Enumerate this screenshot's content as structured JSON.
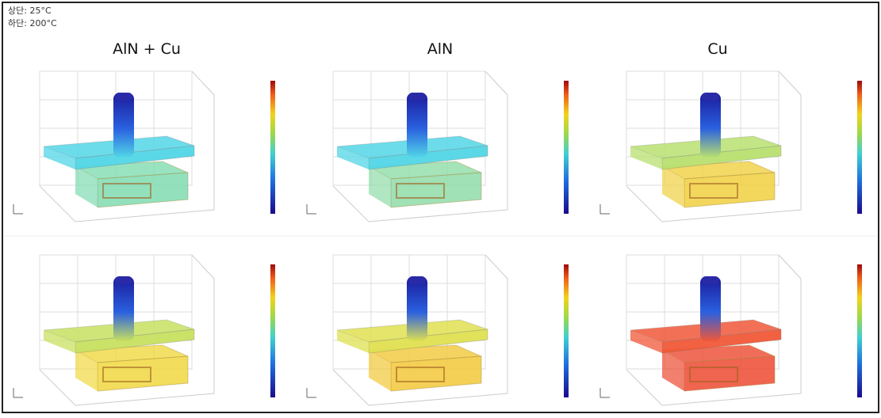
{
  "header": {
    "lines": [
      "상단: 25°C",
      "하단: 200°C"
    ]
  },
  "columns": [
    "AlN + Cu",
    "AlN",
    "Cu"
  ]
}
